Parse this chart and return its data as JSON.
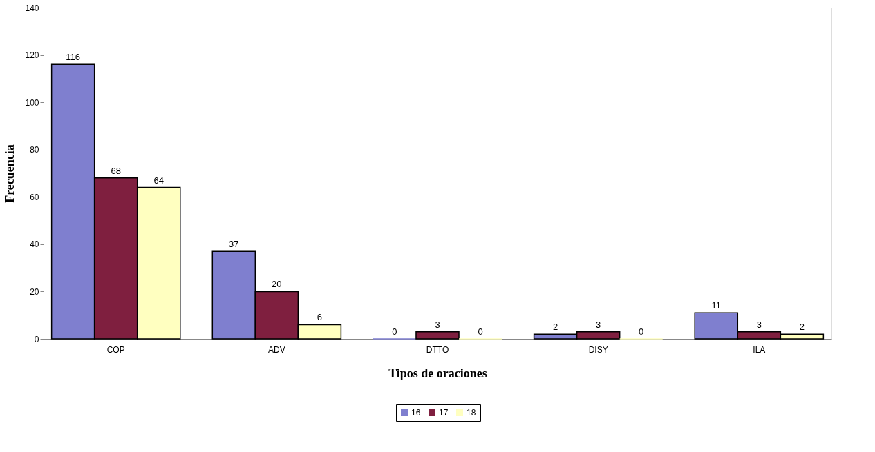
{
  "chart_data": {
    "type": "bar",
    "xlabel": "Tipos de oraciones",
    "ylabel": "Frecuencia",
    "categories": [
      "COP",
      "ADV",
      "DTTO",
      "DISY",
      "ILA"
    ],
    "series": [
      {
        "name": "16",
        "color": "#7f7fcf",
        "values": [
          116,
          37,
          0,
          2,
          11
        ]
      },
      {
        "name": "17",
        "color": "#7f1f3f",
        "values": [
          68,
          20,
          3,
          3,
          3
        ]
      },
      {
        "name": "18",
        "color": "#ffffc0",
        "values": [
          64,
          6,
          0,
          0,
          2
        ]
      }
    ],
    "ylim": [
      0,
      140
    ],
    "yticks": [
      0,
      20,
      40,
      60,
      80,
      100,
      120,
      140
    ],
    "grid": false,
    "legend": "bottom",
    "data_labels": true
  }
}
